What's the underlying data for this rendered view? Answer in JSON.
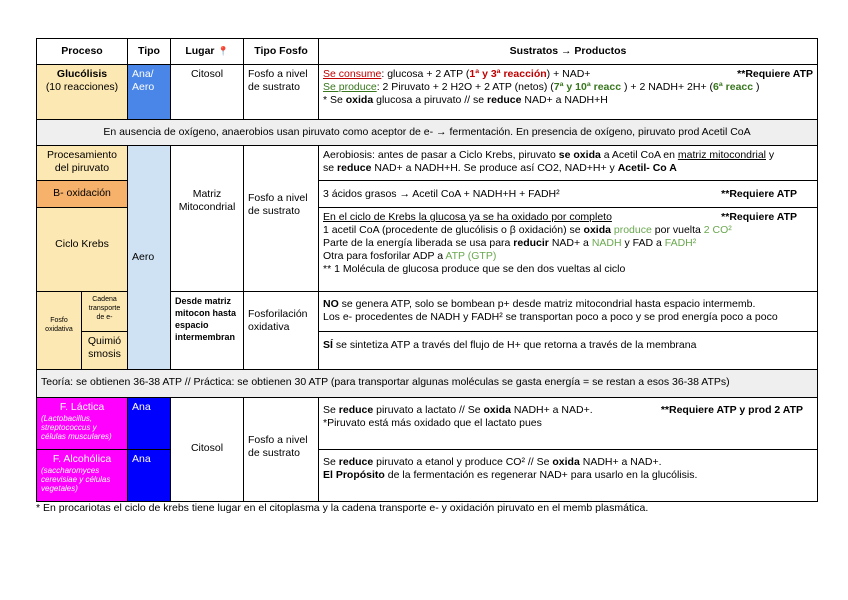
{
  "headers": {
    "proceso": "Proceso",
    "tipo": "Tipo",
    "lugar": "Lugar",
    "lugar_icon": "📍",
    "fosfo": "Tipo Fosfo",
    "sustratos": "Sustratos → Productos"
  },
  "colors": {
    "yellow": "#fce8b2",
    "orange": "#f6b26b",
    "blue": "#4a86e8",
    "light_blue": "#cfe2f3",
    "magenta": "#ff00ff",
    "dark_blue": "#0000ff",
    "band": "#efefef"
  },
  "glucolisis": {
    "name": "Glucólisis",
    "sub": "(10 reacciones)",
    "tipo": "Ana/ Aero",
    "lugar": "Citosol",
    "fosfo": "Fosfo a nivel de sustrato",
    "right": "**Requiere ATP",
    "lines": [
      [
        {
          "t": "Se consume",
          "s": "u red"
        },
        {
          "t": ": glucosa + 2 ATP ("
        },
        {
          "t": "1ª y 3ª reacción",
          "s": "b red"
        },
        {
          "t": ") + NAD+"
        }
      ],
      [
        {
          "t": "Se produce",
          "s": "u grn"
        },
        {
          "t": ": 2 Piruvato + 2 H2O + 2 ATP (netos) ("
        },
        {
          "t": "7ª y 10ª reacc ",
          "s": "b grn"
        },
        {
          "t": ") + 2 NADH+ 2H+ ("
        },
        {
          "t": "6ª reacc ",
          "s": "b grn"
        },
        {
          "t": ")"
        }
      ],
      [
        {
          "t": "* Se "
        },
        {
          "t": "oxida",
          "s": "b"
        },
        {
          "t": " glucosa a piruvato // se "
        },
        {
          "t": "reduce",
          "s": "b"
        },
        {
          "t": " NAD+ a NADH+H"
        }
      ]
    ]
  },
  "band1": "En ausencia de oxígeno, anaerobios usan piruvato como aceptor de e- → fermentación. En presencia de oxígeno, piruvato prod Acetil CoA",
  "aero": {
    "tipo": "Aero",
    "lugar_matriz": "Matriz Mitocondrial",
    "fosfo_sustrato": "Fosfo a nivel de sustrato",
    "lugar_inter": "Desde matriz mitocon hasta espacio intermembran",
    "fosfo_ox": "Fosforilación oxidativa"
  },
  "procesamiento": {
    "name": "Procesamiento del piruvato",
    "lines": [
      [
        {
          "t": "Aerobiosis: antes de pasar a Ciclo Krebs, piruvato "
        },
        {
          "t": "se oxida",
          "s": "b"
        },
        {
          "t": " a Acetil CoA en "
        },
        {
          "t": "matriz mitocondrial",
          "s": "u"
        },
        {
          "t": " y"
        }
      ],
      [
        {
          "t": "se "
        },
        {
          "t": "reduce",
          "s": "b"
        },
        {
          "t": " NAD+ a NADH+H. Se produce así CO2, NAD+H+ y "
        },
        {
          "t": "Acetil- Co A",
          "s": "b"
        }
      ]
    ]
  },
  "boxidacion": {
    "name": "B- oxidación",
    "right": "**Requiere ATP",
    "lines": [
      [
        {
          "t": "3 ácidos grasos → Acetil CoA + NADH+H +  FADH²"
        }
      ]
    ]
  },
  "krebs": {
    "name": "Ciclo Krebs",
    "right": "**Requiere ATP",
    "lines": [
      [
        {
          "t": "En el ciclo de Krebs la glucosa ya se ha oxidado por completo",
          "s": "u"
        }
      ],
      [
        {
          "t": "1 acetil CoA (procedente de glucólisis o β oxidación) se "
        },
        {
          "t": "oxida",
          "s": "b"
        },
        {
          "t": " produce",
          "s": "lg"
        },
        {
          "t": " por vuelta "
        },
        {
          "t": "2 CO²",
          "s": "lg"
        }
      ],
      [
        {
          "t": "Parte de la energía liberada se usa para "
        },
        {
          "t": "reducir",
          "s": "b"
        },
        {
          "t": " NAD+ a "
        },
        {
          "t": "NADH",
          "s": "lg"
        },
        {
          "t": " y FAD a "
        },
        {
          "t": "FADH²",
          "s": "lg"
        }
      ],
      [
        {
          "t": "Otra para fosforilar ADP a "
        },
        {
          "t": "ATP (GTP)",
          "s": "lg"
        }
      ],
      [
        {
          "t": "** 1 Molécula de glucosa produce que se den dos vueltas al ciclo"
        }
      ]
    ]
  },
  "fosfo_ox": {
    "name": "Fosfo oxidativa",
    "cadena": "Cadena transporte de e-",
    "quimio": "Quimió smosis",
    "cadena_lines": [
      [
        {
          "t": "NO",
          "s": "b"
        },
        {
          "t": " se genera ATP, solo se bombean p+ desde matriz mitocondrial hasta espacio intermemb."
        }
      ],
      [
        {
          "t": "Los e-  procedentes de NADH y FADH² se transportan poco a poco y se prod energía poco a poco"
        }
      ]
    ],
    "quimio_lines": [
      [
        {
          "t": "SÍ",
          "s": "b"
        },
        {
          "t": " se sintetiza ATP a través del flujo de H+ que retorna a través de la membrana"
        }
      ]
    ]
  },
  "band2": "Teoría: se obtienen 36-38 ATP  // Práctica: se obtienen 30 ATP (para transportar algunas moléculas se gasta energía = se restan a esos 36-38 ATPs)",
  "lactica": {
    "name": "F. Láctica",
    "sub": "(Lactobacillus, streptococcus y células musculares)",
    "tipo": "Ana",
    "right": "**Requiere ATP y prod 2 ATP",
    "lines": [
      [
        {
          "t": "Se "
        },
        {
          "t": "reduce",
          "s": "b"
        },
        {
          "t": " piruvato a lactato // Se "
        },
        {
          "t": "oxida",
          "s": "b"
        },
        {
          "t": " NADH+ a NAD+."
        }
      ],
      [
        {
          "t": "*Piruvato está más oxidado que el lactato pues"
        }
      ]
    ]
  },
  "alcoholica": {
    "name": "F. Alcohólica",
    "sub": "(saccharomyces cerevisiae y células vegetales)",
    "tipo": "Ana",
    "lines": [
      [
        {
          "t": "Se "
        },
        {
          "t": "reduce",
          "s": "b"
        },
        {
          "t": " piruvato a etanol y produce CO² // Se "
        },
        {
          "t": "oxida",
          "s": "b"
        },
        {
          "t": " NADH+ a NAD+."
        }
      ],
      [
        {
          "t": " "
        }
      ],
      [
        {
          "t": "El Propósito",
          "s": "b"
        },
        {
          "t": " de la fermentación es regenerar NAD+ para usarlo en la glucólisis."
        }
      ]
    ]
  },
  "ferm": {
    "lugar": "Citosol",
    "fosfo": "Fosfo a nivel de sustrato"
  },
  "footnote": "* En procariotas el ciclo de krebs tiene lugar en el citoplasma y la cadena transporte e- y oxidación piruvato en el memb plasmática."
}
